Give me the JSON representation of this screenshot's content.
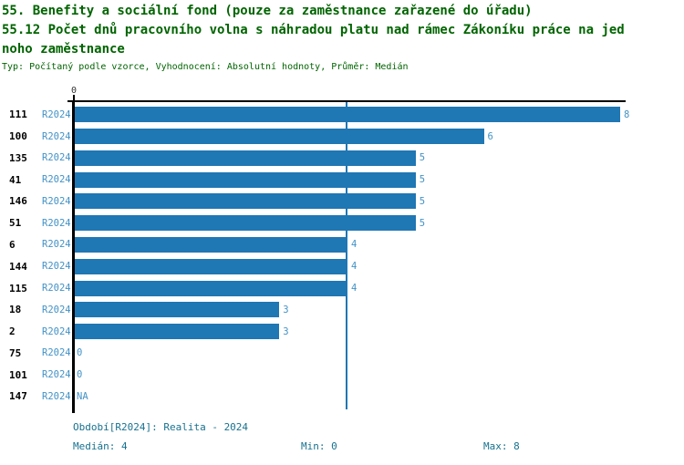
{
  "header": {
    "title_line1": "55. Benefity a sociální fond (pouze za zaměstnance zařazené do úřadu)",
    "title_line2": "55.12 Počet dnů pracovního volna s náhradou platu nad rámec Zákoníku práce na jed",
    "title_line3": "noho zaměstnance",
    "subtitle": "Typ: Počítaný podle vzorce, Vyhodnocení: Absolutní hodnoty, Průměr: Medián"
  },
  "chart_data": {
    "type": "bar",
    "orientation": "horizontal",
    "section": "55. Benefity a sociální fond (pouze za zaměstnance zařazené do úřadu)",
    "title": "55.12 Počet dnů pracovního volna s náhradou platu nad rámec Zákoníku práce na jednoho zaměstnance",
    "subtitle": "Typ: Počítaný podle vzorce, Vyhodnocení: Absolutní hodnoty, Průměr: Medián",
    "series_name": "R2024",
    "categories": [
      "111",
      "100",
      "135",
      "41",
      "146",
      "51",
      "6",
      "144",
      "115",
      "18",
      "2",
      "75",
      "101",
      "147"
    ],
    "values": [
      8,
      6,
      5,
      5,
      5,
      5,
      4,
      4,
      4,
      3,
      3,
      0,
      0,
      null
    ],
    "value_labels": [
      "8",
      "6",
      "5",
      "5",
      "5",
      "5",
      "4",
      "4",
      "4",
      "3",
      "3",
      "0",
      "0",
      "NA"
    ],
    "xlabel": "",
    "ylabel": "",
    "xlim": [
      0,
      8
    ],
    "x_tick_labels": [
      "0"
    ],
    "grid": false,
    "legend_position": "none",
    "median_line_value": 4,
    "median": 4,
    "min": 0,
    "max": 8
  },
  "axis": {
    "x_tick_label": "0"
  },
  "footer": {
    "period": "Období[R2024]: Realita - 2024",
    "median": "Medián: 4",
    "min": "Min: 0",
    "max": "Max: 8"
  },
  "colors": {
    "background": "#ffffff",
    "title": "#006400",
    "bar": "#1f77b4",
    "row_label": "#000000",
    "period_label": "#4292c6",
    "value_label": "#4292c6",
    "median_line": "#1f77b4",
    "axis": "#000000",
    "footer": "#17718f"
  }
}
